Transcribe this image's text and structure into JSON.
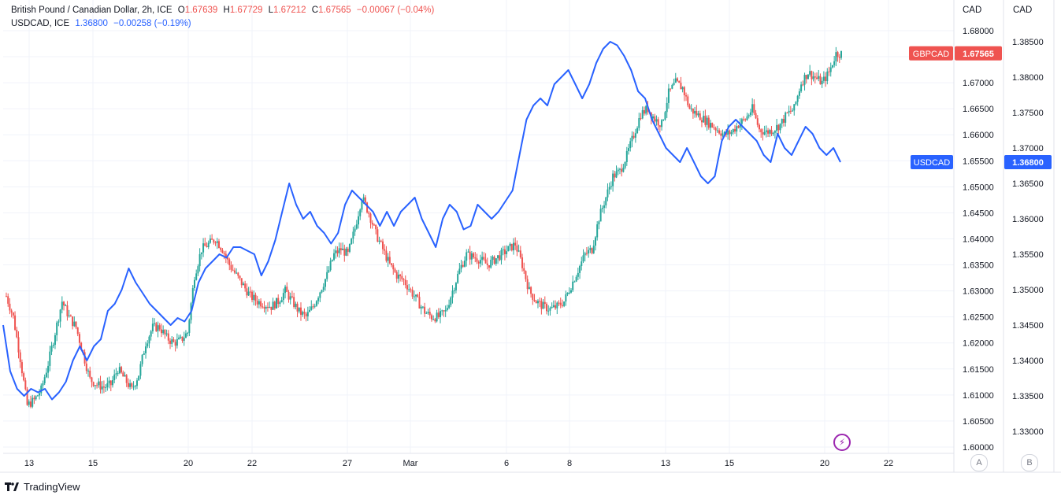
{
  "legend": {
    "main_title": "British Pound / Canadian Dollar, 2h, ICE",
    "o_label": "O",
    "o_value": "1.67639",
    "h_label": "H",
    "h_value": "1.67729",
    "l_label": "L",
    "l_value": "1.67212",
    "c_label": "C",
    "c_value": "1.67565",
    "change": "−0.00067 (−0.04%)",
    "second_title": "USDCAD, ICE",
    "second_value": "1.36800",
    "second_change": "−0.00258 (−0.19%)"
  },
  "axes": {
    "left_scale_title": "CAD",
    "right_scale_title": "CAD",
    "btn_a": "A",
    "btn_b": "B"
  },
  "footer": {
    "brand": "TradingView"
  },
  "colors": {
    "up": "#26a69a",
    "down": "#ef5350",
    "usdcad_line": "#2962ff",
    "grid": "#f0f3fa"
  },
  "icons": {
    "alert": "lightning-bolt-icon",
    "logo": "tradingview-logo-icon"
  },
  "chart_data": {
    "type": "line",
    "x_tick_labels": [
      "13",
      "15",
      "20",
      "22",
      "27",
      "Mar",
      "6",
      "8",
      "13",
      "15",
      "20",
      "22"
    ],
    "gbpcad_axis": {
      "ticks": [
        "1.68000",
        "1.67500",
        "1.67000",
        "1.66500",
        "1.66000",
        "1.65500",
        "1.65000",
        "1.64500",
        "1.64000",
        "1.63500",
        "1.63000",
        "1.62500",
        "1.62000",
        "1.61500",
        "1.61000",
        "1.60500",
        "1.60000"
      ],
      "range": [
        1.6,
        1.68
      ]
    },
    "usdcad_axis": {
      "ticks": [
        "1.38500",
        "1.38000",
        "1.37500",
        "1.37000",
        "1.36500",
        "1.36000",
        "1.35500",
        "1.35000",
        "1.34500",
        "1.34000",
        "1.33500",
        "1.33000"
      ],
      "range": [
        1.3285,
        1.3867
      ]
    },
    "series": [
      {
        "name": "GBPCAD",
        "last_label": "GBPCAD",
        "last_value": "1.67565",
        "keypoints_x": [
          "13",
          "15",
          "20",
          "22",
          "27",
          "Mar",
          "6",
          "8",
          "13",
          "15",
          "20"
        ],
        "closes": [
          1.629,
          1.625,
          1.617,
          1.608,
          1.609,
          1.611,
          1.616,
          1.622,
          1.628,
          1.625,
          1.623,
          1.618,
          1.613,
          1.612,
          1.6115,
          1.612,
          1.615,
          1.613,
          1.611,
          1.614,
          1.62,
          1.623,
          1.623,
          1.621,
          1.62,
          1.6205,
          1.622,
          1.633,
          1.638,
          1.639,
          1.64,
          1.638,
          1.635,
          1.633,
          1.631,
          1.629,
          1.628,
          1.6275,
          1.627,
          1.628,
          1.63,
          1.628,
          1.626,
          1.625,
          1.627,
          1.63,
          1.633,
          1.637,
          1.638,
          1.637,
          1.642,
          1.648,
          1.645,
          1.641,
          1.638,
          1.635,
          1.633,
          1.632,
          1.63,
          1.628,
          1.626,
          1.625,
          1.625,
          1.626,
          1.63,
          1.634,
          1.637,
          1.6365,
          1.636,
          1.635,
          1.636,
          1.637,
          1.638,
          1.639,
          1.635,
          1.63,
          1.628,
          1.627,
          1.6265,
          1.627,
          1.628,
          1.631,
          1.634,
          1.637,
          1.638,
          1.644,
          1.648,
          1.652,
          1.653,
          1.656,
          1.66,
          1.664,
          1.665,
          1.663,
          1.662,
          1.668,
          1.67,
          1.669,
          1.665,
          1.664,
          1.663,
          1.662,
          1.661,
          1.66,
          1.6605,
          1.662,
          1.663,
          1.665,
          1.661,
          1.6605,
          1.661,
          1.662,
          1.664,
          1.665,
          1.67,
          1.672,
          1.671,
          1.67,
          1.672,
          1.6756
        ]
      },
      {
        "name": "USDCAD",
        "last_label": "USDCAD",
        "last_value": "1.36800",
        "values": [
          1.345,
          1.3385,
          1.336,
          1.335,
          1.336,
          1.3355,
          1.336,
          1.3345,
          1.3355,
          1.337,
          1.34,
          1.342,
          1.34,
          1.342,
          1.343,
          1.347,
          1.348,
          1.35,
          1.353,
          1.351,
          1.3495,
          1.348,
          1.347,
          1.346,
          1.345,
          1.346,
          1.3455,
          1.347,
          1.351,
          1.353,
          1.354,
          1.355,
          1.3545,
          1.356,
          1.356,
          1.3555,
          1.355,
          1.352,
          1.354,
          1.357,
          1.361,
          1.365,
          1.362,
          1.36,
          1.361,
          1.359,
          1.358,
          1.3565,
          1.358,
          1.362,
          1.364,
          1.363,
          1.362,
          1.361,
          1.359,
          1.361,
          1.359,
          1.361,
          1.362,
          1.363,
          1.36,
          1.358,
          1.356,
          1.36,
          1.362,
          1.361,
          1.3585,
          1.359,
          1.362,
          1.361,
          1.36,
          1.361,
          1.3625,
          1.364,
          1.369,
          1.374,
          1.376,
          1.377,
          1.376,
          1.379,
          1.38,
          1.381,
          1.379,
          1.377,
          1.379,
          1.382,
          1.384,
          1.385,
          1.3845,
          1.383,
          1.381,
          1.378,
          1.377,
          1.374,
          1.372,
          1.37,
          1.369,
          1.368,
          1.37,
          1.368,
          1.366,
          1.365,
          1.366,
          1.371,
          1.373,
          1.374,
          1.373,
          1.372,
          1.371,
          1.369,
          1.368,
          1.372,
          1.37,
          1.369,
          1.371,
          1.373,
          1.372,
          1.37,
          1.369,
          1.37,
          1.368
        ]
      }
    ],
    "grid": true
  }
}
